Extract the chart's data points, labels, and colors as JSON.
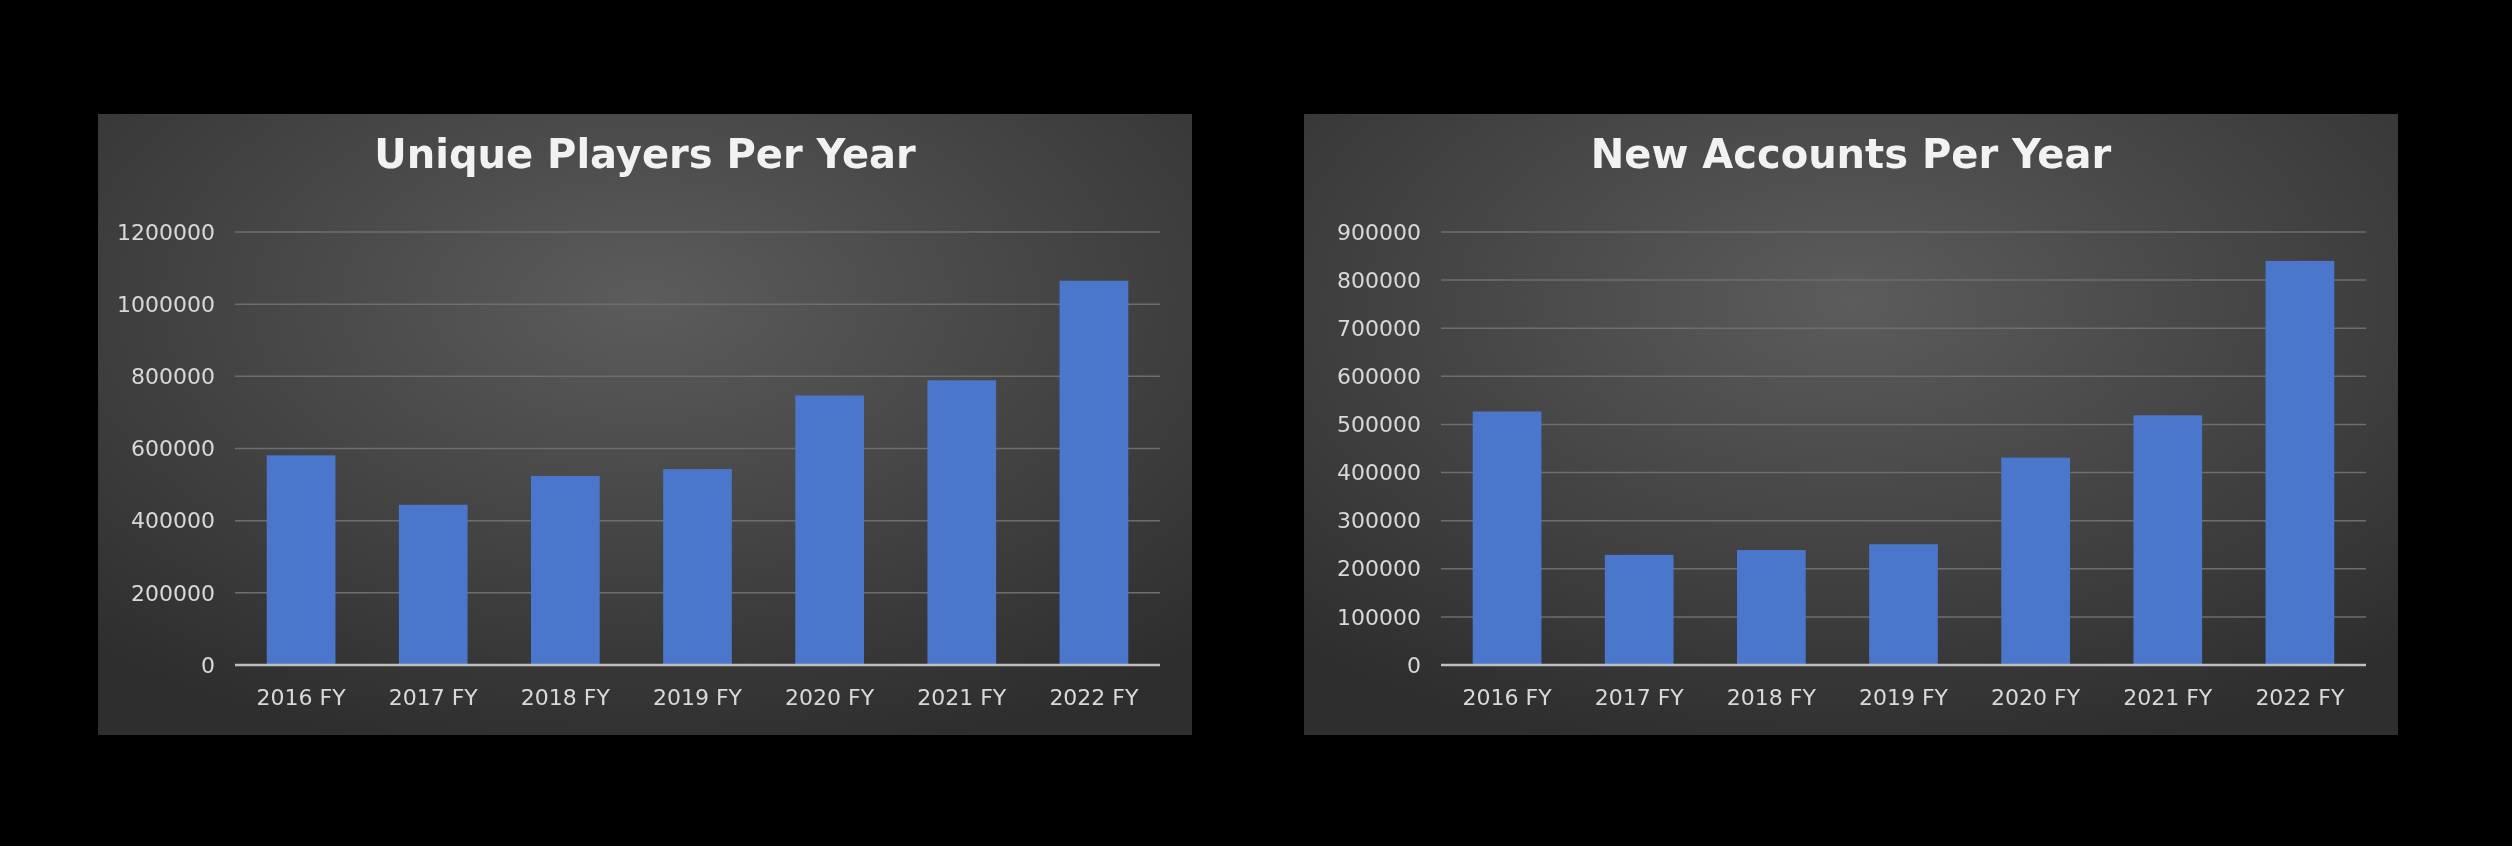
{
  "chart_data": [
    {
      "type": "bar",
      "title": "Unique Players Per Year",
      "categories": [
        "2016 FY",
        "2017 FY",
        "2018 FY",
        "2019 FY",
        "2020 FY",
        "2021 FY",
        "2022 FY"
      ],
      "values": [
        581000,
        444000,
        524000,
        543000,
        747000,
        789000,
        1065000
      ],
      "color": "#4a76cc",
      "ylim": [
        0,
        1200000
      ],
      "yticks": [
        0,
        200000,
        400000,
        600000,
        800000,
        1000000,
        1200000
      ],
      "grid": "y"
    },
    {
      "type": "bar",
      "title": "New Accounts Per Year",
      "categories": [
        "2016 FY",
        "2017 FY",
        "2018 FY",
        "2019 FY",
        "2020 FY",
        "2021 FY",
        "2022 FY"
      ],
      "values": [
        527000,
        229000,
        239000,
        251000,
        431000,
        519000,
        840000
      ],
      "color": "#4a76cc",
      "ylim": [
        0,
        900000
      ],
      "yticks": [
        0,
        100000,
        200000,
        300000,
        400000,
        500000,
        600000,
        700000,
        800000,
        900000
      ],
      "grid": "y"
    }
  ]
}
